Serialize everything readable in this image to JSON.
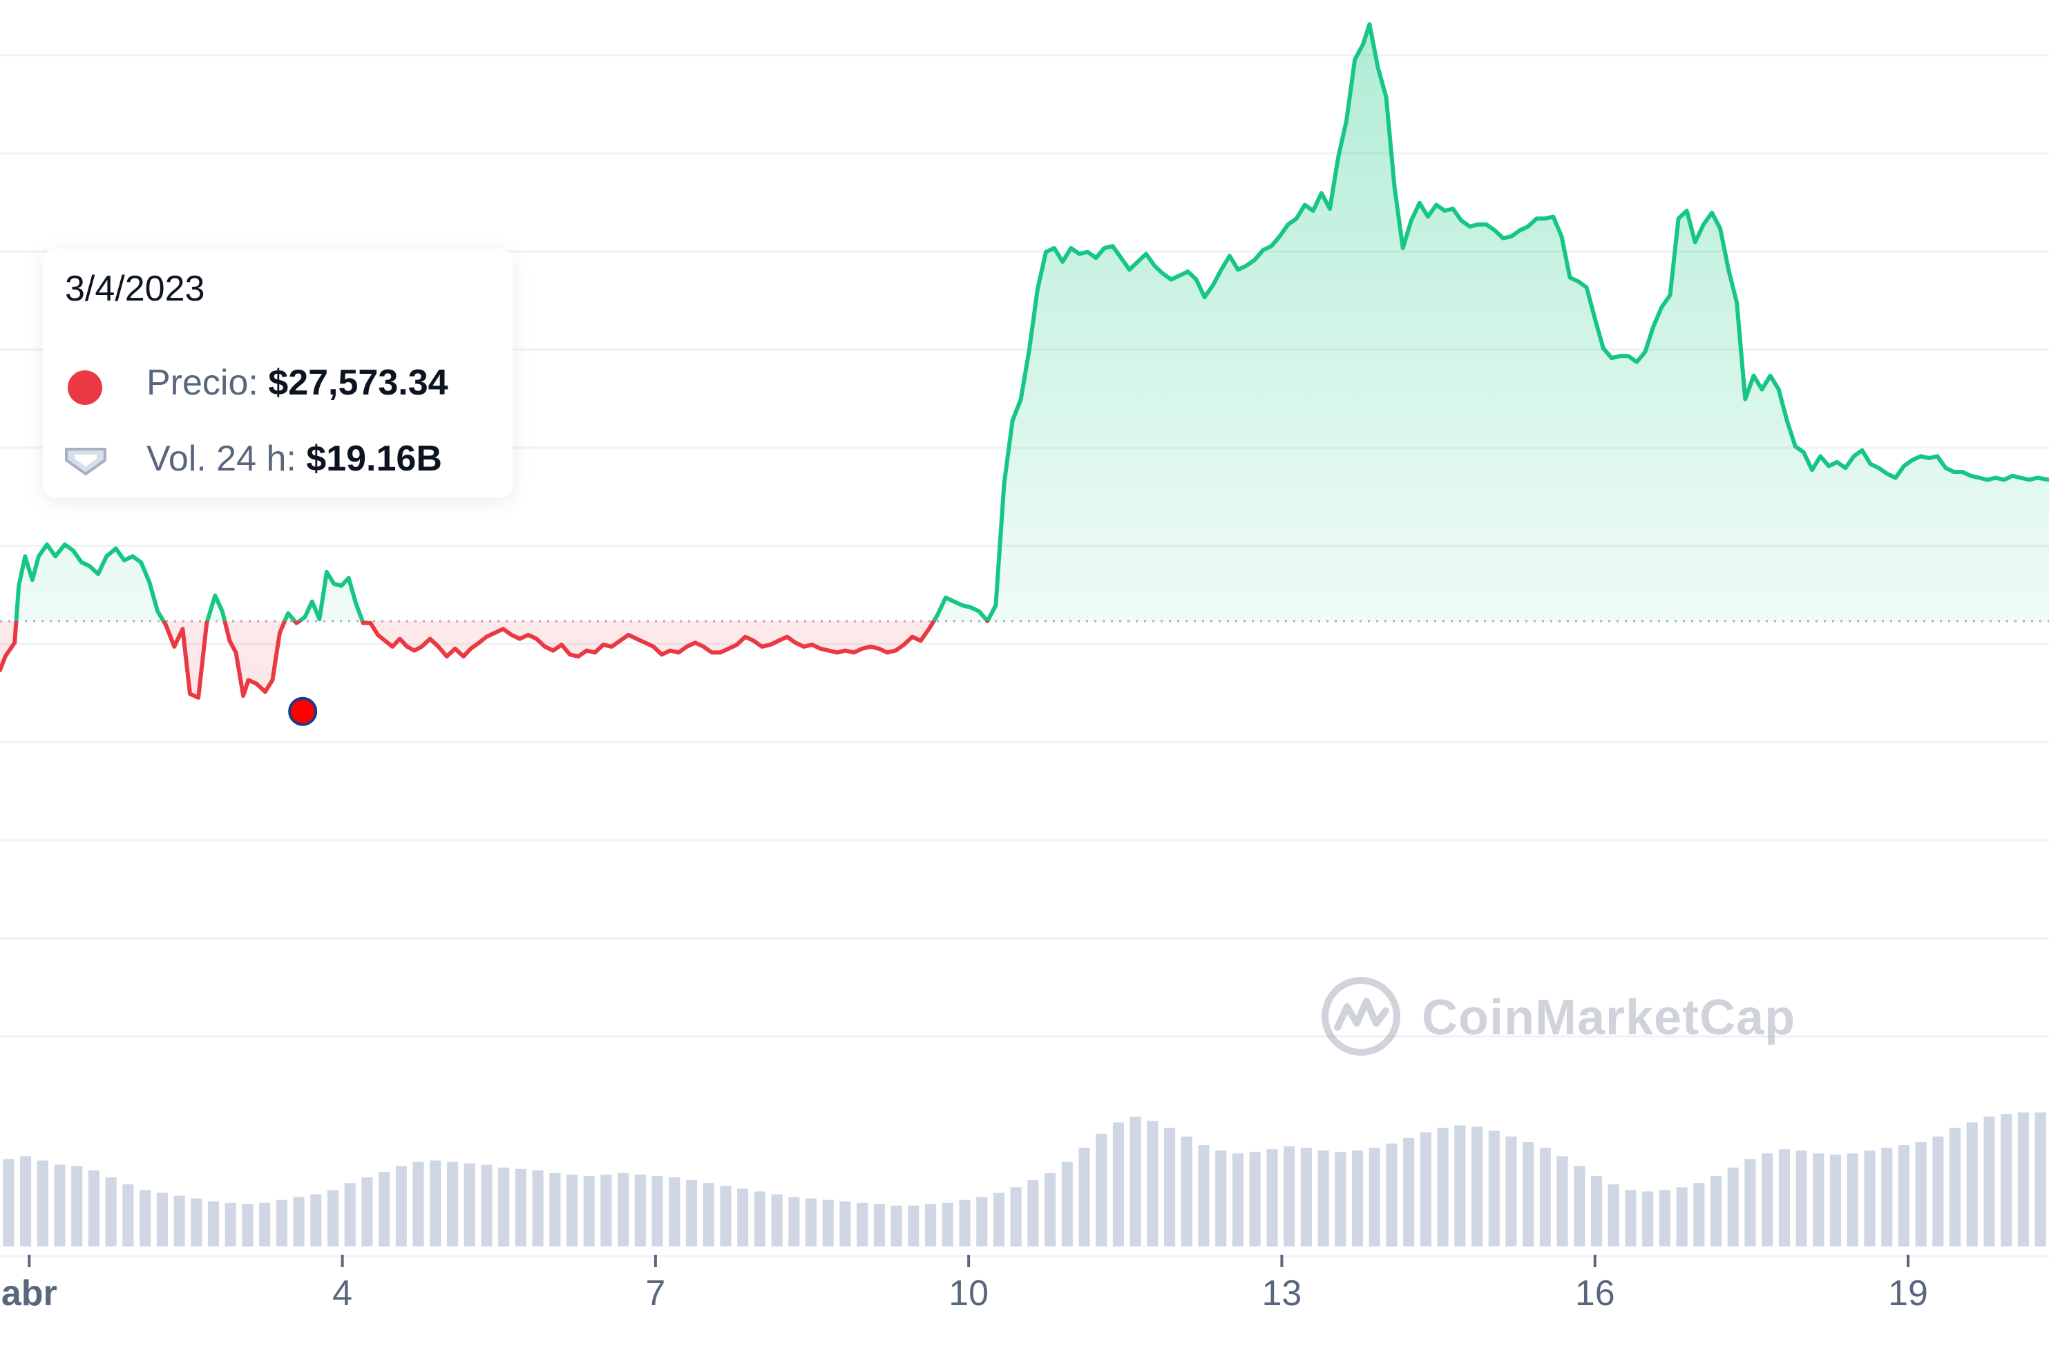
{
  "colors": {
    "up": "#16c784",
    "down": "#ea3943",
    "grid": "#eff2f5",
    "baseline": "#a6b0c3",
    "volume": "#cfd6e4",
    "marker": "#ff0000",
    "marker_stroke": "#1a3a8a"
  },
  "tooltip": {
    "date": "3/4/2023",
    "price_label": "Precio:",
    "price_value": "$27,573.34",
    "volume_label": "Vol. 24 h:",
    "volume_value": "$19.16B"
  },
  "watermark": {
    "text": "CoinMarketCap",
    "logo_icon": "coinmarketcap-logo-icon"
  },
  "chart_data": {
    "type": "area",
    "baseline_price": 27600,
    "ylim": [
      26400,
      30700
    ],
    "x_range": [
      0.72,
      20.35
    ],
    "grid": "horizontal",
    "x_ticks": [
      {
        "x": 1,
        "label": "abr"
      },
      {
        "x": 4,
        "label": "4"
      },
      {
        "x": 7,
        "label": "7"
      },
      {
        "x": 10,
        "label": "10"
      },
      {
        "x": 13,
        "label": "13"
      },
      {
        "x": 16,
        "label": "16"
      },
      {
        "x": 19,
        "label": "19"
      }
    ],
    "price_series": {
      "name": "Precio",
      "points": [
        [
          0.72,
          27350
        ],
        [
          0.77,
          27420
        ],
        [
          0.86,
          27490
        ],
        [
          0.9,
          27780
        ],
        [
          0.96,
          27930
        ],
        [
          1.03,
          27810
        ],
        [
          1.09,
          27930
        ],
        [
          1.17,
          27990
        ],
        [
          1.25,
          27930
        ],
        [
          1.34,
          27990
        ],
        [
          1.42,
          27960
        ],
        [
          1.5,
          27900
        ],
        [
          1.58,
          27880
        ],
        [
          1.66,
          27840
        ],
        [
          1.74,
          27930
        ],
        [
          1.83,
          27970
        ],
        [
          1.91,
          27910
        ],
        [
          1.99,
          27930
        ],
        [
          2.07,
          27900
        ],
        [
          2.15,
          27800
        ],
        [
          2.23,
          27650
        ],
        [
          2.31,
          27580
        ],
        [
          2.39,
          27470
        ],
        [
          2.47,
          27560
        ],
        [
          2.54,
          27230
        ],
        [
          2.62,
          27210
        ],
        [
          2.7,
          27590
        ],
        [
          2.78,
          27730
        ],
        [
          2.85,
          27650
        ],
        [
          2.92,
          27500
        ],
        [
          2.98,
          27440
        ],
        [
          3.05,
          27220
        ],
        [
          3.1,
          27300
        ],
        [
          3.18,
          27280
        ],
        [
          3.26,
          27240
        ],
        [
          3.33,
          27300
        ],
        [
          3.4,
          27540
        ],
        [
          3.48,
          27640
        ],
        [
          3.56,
          27590
        ],
        [
          3.64,
          27620
        ],
        [
          3.71,
          27700
        ],
        [
          3.78,
          27610
        ],
        [
          3.85,
          27850
        ],
        [
          3.92,
          27790
        ],
        [
          3.99,
          27780
        ],
        [
          4.06,
          27820
        ],
        [
          4.13,
          27690
        ],
        [
          4.2,
          27590
        ],
        [
          4.27,
          27590
        ],
        [
          4.34,
          27530
        ],
        [
          4.41,
          27500
        ],
        [
          4.48,
          27470
        ],
        [
          4.55,
          27510
        ],
        [
          4.62,
          27470
        ],
        [
          4.69,
          27450
        ],
        [
          4.76,
          27470
        ],
        [
          4.84,
          27510
        ],
        [
          4.92,
          27470
        ],
        [
          5.0,
          27420
        ],
        [
          5.08,
          27460
        ],
        [
          5.16,
          27420
        ],
        [
          5.23,
          27460
        ],
        [
          5.31,
          27490
        ],
        [
          5.38,
          27520
        ],
        [
          5.46,
          27540
        ],
        [
          5.54,
          27560
        ],
        [
          5.62,
          27530
        ],
        [
          5.7,
          27510
        ],
        [
          5.78,
          27530
        ],
        [
          5.86,
          27510
        ],
        [
          5.94,
          27470
        ],
        [
          6.02,
          27450
        ],
        [
          6.1,
          27480
        ],
        [
          6.18,
          27430
        ],
        [
          6.26,
          27420
        ],
        [
          6.34,
          27450
        ],
        [
          6.42,
          27440
        ],
        [
          6.5,
          27480
        ],
        [
          6.58,
          27470
        ],
        [
          6.66,
          27500
        ],
        [
          6.74,
          27530
        ],
        [
          6.82,
          27510
        ],
        [
          6.9,
          27490
        ],
        [
          6.98,
          27470
        ],
        [
          7.06,
          27430
        ],
        [
          7.14,
          27450
        ],
        [
          7.22,
          27440
        ],
        [
          7.3,
          27470
        ],
        [
          7.38,
          27490
        ],
        [
          7.46,
          27470
        ],
        [
          7.54,
          27440
        ],
        [
          7.62,
          27440
        ],
        [
          7.7,
          27460
        ],
        [
          7.78,
          27480
        ],
        [
          7.86,
          27520
        ],
        [
          7.94,
          27500
        ],
        [
          8.02,
          27470
        ],
        [
          8.1,
          27480
        ],
        [
          8.18,
          27500
        ],
        [
          8.26,
          27520
        ],
        [
          8.34,
          27490
        ],
        [
          8.42,
          27470
        ],
        [
          8.5,
          27480
        ],
        [
          8.58,
          27460
        ],
        [
          8.66,
          27450
        ],
        [
          8.74,
          27440
        ],
        [
          8.82,
          27450
        ],
        [
          8.9,
          27440
        ],
        [
          8.98,
          27460
        ],
        [
          9.06,
          27470
        ],
        [
          9.14,
          27460
        ],
        [
          9.22,
          27440
        ],
        [
          9.3,
          27450
        ],
        [
          9.38,
          27480
        ],
        [
          9.46,
          27520
        ],
        [
          9.54,
          27500
        ],
        [
          9.62,
          27560
        ],
        [
          9.7,
          27630
        ],
        [
          9.78,
          27720
        ],
        [
          9.86,
          27700
        ],
        [
          9.94,
          27680
        ],
        [
          10.02,
          27670
        ],
        [
          10.1,
          27650
        ],
        [
          10.18,
          27600
        ],
        [
          10.26,
          27680
        ],
        [
          10.34,
          28300
        ],
        [
          10.42,
          28620
        ],
        [
          10.5,
          28730
        ],
        [
          10.58,
          28980
        ],
        [
          10.66,
          29290
        ],
        [
          10.74,
          29480
        ],
        [
          10.82,
          29500
        ],
        [
          10.9,
          29430
        ],
        [
          10.98,
          29500
        ],
        [
          11.06,
          29470
        ],
        [
          11.14,
          29480
        ],
        [
          11.22,
          29450
        ],
        [
          11.3,
          29500
        ],
        [
          11.38,
          29510
        ],
        [
          11.46,
          29450
        ],
        [
          11.54,
          29390
        ],
        [
          11.62,
          29430
        ],
        [
          11.7,
          29470
        ],
        [
          11.78,
          29410
        ],
        [
          11.86,
          29370
        ],
        [
          11.94,
          29340
        ],
        [
          12.02,
          29360
        ],
        [
          12.1,
          29380
        ],
        [
          12.18,
          29340
        ],
        [
          12.26,
          29250
        ],
        [
          12.34,
          29310
        ],
        [
          12.42,
          29390
        ],
        [
          12.5,
          29460
        ],
        [
          12.58,
          29390
        ],
        [
          12.66,
          29410
        ],
        [
          12.74,
          29440
        ],
        [
          12.82,
          29490
        ],
        [
          12.9,
          29510
        ],
        [
          12.98,
          29560
        ],
        [
          13.06,
          29620
        ],
        [
          13.14,
          29650
        ],
        [
          13.22,
          29720
        ],
        [
          13.3,
          29690
        ],
        [
          13.38,
          29780
        ],
        [
          13.46,
          29700
        ],
        [
          13.54,
          29960
        ],
        [
          13.62,
          30150
        ],
        [
          13.7,
          30460
        ],
        [
          13.78,
          30540
        ],
        [
          13.84,
          30640
        ],
        [
          13.92,
          30420
        ],
        [
          14.0,
          30270
        ],
        [
          14.08,
          29810
        ],
        [
          14.16,
          29500
        ],
        [
          14.24,
          29640
        ],
        [
          14.32,
          29730
        ],
        [
          14.4,
          29660
        ],
        [
          14.48,
          29720
        ],
        [
          14.56,
          29690
        ],
        [
          14.64,
          29700
        ],
        [
          14.72,
          29640
        ],
        [
          14.8,
          29610
        ],
        [
          14.88,
          29620
        ],
        [
          14.96,
          29620
        ],
        [
          15.04,
          29590
        ],
        [
          15.12,
          29550
        ],
        [
          15.2,
          29560
        ],
        [
          15.28,
          29590
        ],
        [
          15.36,
          29610
        ],
        [
          15.44,
          29650
        ],
        [
          15.52,
          29650
        ],
        [
          15.6,
          29660
        ],
        [
          15.68,
          29560
        ],
        [
          15.76,
          29350
        ],
        [
          15.84,
          29330
        ],
        [
          15.92,
          29300
        ],
        [
          16.0,
          29140
        ],
        [
          16.08,
          28990
        ],
        [
          16.16,
          28940
        ],
        [
          16.24,
          28950
        ],
        [
          16.32,
          28950
        ],
        [
          16.4,
          28920
        ],
        [
          16.48,
          28970
        ],
        [
          16.56,
          29100
        ],
        [
          16.64,
          29200
        ],
        [
          16.72,
          29260
        ],
        [
          16.8,
          29650
        ],
        [
          16.88,
          29690
        ],
        [
          16.96,
          29530
        ],
        [
          17.04,
          29620
        ],
        [
          17.12,
          29680
        ],
        [
          17.2,
          29600
        ],
        [
          17.28,
          29390
        ],
        [
          17.36,
          29220
        ],
        [
          17.44,
          28730
        ],
        [
          17.52,
          28850
        ],
        [
          17.6,
          28780
        ],
        [
          17.68,
          28850
        ],
        [
          17.76,
          28780
        ],
        [
          17.84,
          28620
        ],
        [
          17.92,
          28490
        ],
        [
          18.0,
          28460
        ],
        [
          18.08,
          28370
        ],
        [
          18.16,
          28440
        ],
        [
          18.24,
          28390
        ],
        [
          18.32,
          28410
        ],
        [
          18.4,
          28380
        ],
        [
          18.48,
          28440
        ],
        [
          18.56,
          28470
        ],
        [
          18.64,
          28400
        ],
        [
          18.72,
          28380
        ],
        [
          18.8,
          28350
        ],
        [
          18.88,
          28330
        ],
        [
          18.96,
          28390
        ],
        [
          19.04,
          28420
        ],
        [
          19.12,
          28440
        ],
        [
          19.2,
          28430
        ],
        [
          19.28,
          28440
        ],
        [
          19.36,
          28380
        ],
        [
          19.44,
          28360
        ],
        [
          19.52,
          28360
        ],
        [
          19.6,
          28340
        ],
        [
          19.68,
          28330
        ],
        [
          19.76,
          28320
        ],
        [
          19.84,
          28330
        ],
        [
          19.92,
          28320
        ],
        [
          20.0,
          28340
        ],
        [
          20.08,
          28330
        ],
        [
          20.16,
          28320
        ],
        [
          20.24,
          28330
        ],
        [
          20.35,
          28320
        ]
      ]
    },
    "volume_series": {
      "name": "Vol. 24 h",
      "max": 100,
      "values": [
        62,
        64,
        61,
        58,
        57,
        54,
        49,
        44,
        40,
        38,
        36,
        34,
        32,
        31,
        30,
        31,
        33,
        35,
        37,
        40,
        45,
        49,
        53,
        57,
        60,
        61,
        60,
        59,
        58,
        56,
        55,
        54,
        52,
        51,
        50,
        51,
        52,
        51,
        50,
        49,
        47,
        45,
        43,
        41,
        39,
        37,
        35,
        34,
        33,
        32,
        31,
        30,
        29,
        29,
        30,
        31,
        33,
        35,
        38,
        42,
        47,
        52,
        60,
        70,
        80,
        88,
        92,
        89,
        84,
        78,
        72,
        68,
        66,
        67,
        69,
        71,
        70,
        68,
        67,
        68,
        70,
        73,
        77,
        81,
        84,
        86,
        85,
        82,
        78,
        74,
        70,
        64,
        57,
        50,
        44,
        40,
        39,
        40,
        42,
        45,
        50,
        56,
        62,
        66,
        69,
        68,
        66,
        65,
        66,
        68,
        70,
        72,
        74,
        78,
        84,
        88,
        92,
        94,
        95,
        95
      ]
    },
    "highlight_point": {
      "x": 3.62,
      "y": 27140
    }
  }
}
